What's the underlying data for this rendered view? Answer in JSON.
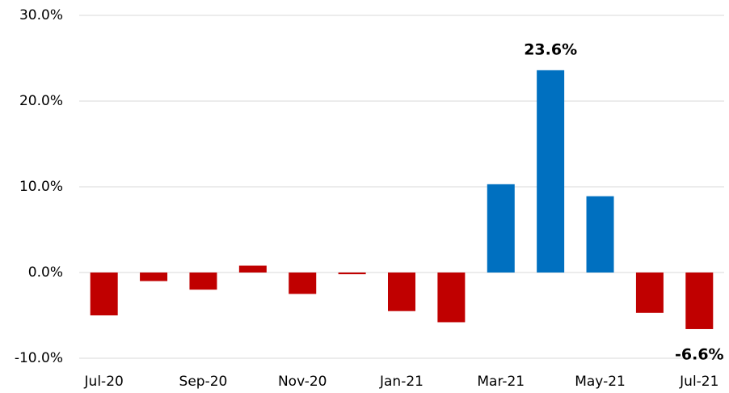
{
  "chart_data": {
    "type": "bar",
    "categories": [
      "Jul-20",
      null,
      "Sep-20",
      null,
      "Nov-20",
      null,
      "Jan-21",
      null,
      "Mar-21",
      null,
      "May-21",
      null,
      "Jul-21"
    ],
    "values": [
      -5.0,
      -1.0,
      -2.0,
      0.8,
      -2.5,
      -0.2,
      -4.5,
      -5.8,
      10.3,
      23.6,
      8.9,
      -4.7,
      -6.6
    ],
    "value_labels": [
      null,
      null,
      null,
      null,
      null,
      null,
      null,
      null,
      null,
      "23.6%",
      null,
      null,
      "-6.6%"
    ],
    "colors": [
      "#c00000",
      "#c00000",
      "#c00000",
      "#c00000",
      "#c00000",
      "#c00000",
      "#c00000",
      "#c00000",
      "#0070c0",
      "#0070c0",
      "#0070c0",
      "#c00000",
      "#c00000"
    ],
    "ylim": [
      -10,
      30
    ],
    "yticks": [
      {
        "value": -10,
        "label": "-10.0%"
      },
      {
        "value": 0,
        "label": "0.0%"
      },
      {
        "value": 10,
        "label": "10.0%"
      },
      {
        "value": 20,
        "label": "20.0%"
      },
      {
        "value": 30,
        "label": "30.0%"
      }
    ],
    "grid": true
  }
}
